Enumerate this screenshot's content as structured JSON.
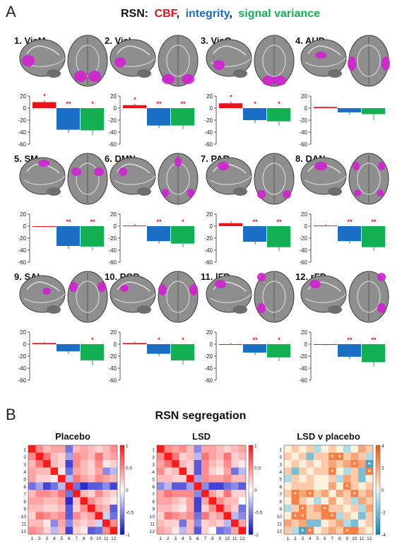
{
  "figure": {
    "panel_a_letter": "A",
    "panel_b_letter": "B",
    "rsn_label": "RSN:",
    "sep1": ",",
    "sep2": ",",
    "legend": [
      {
        "name": "CBF",
        "color": "#e8141c"
      },
      {
        "name": "integrity",
        "color": "#1a6fc4"
      },
      {
        "name": "signal variance",
        "color": "#12b052"
      }
    ],
    "segregation_title": "RSN segregation"
  },
  "colors": {
    "cbf": "#e8141c",
    "integrity": "#1a6fc4",
    "variance": "#12b052",
    "star": "#e8141c",
    "brain_gray": "#8c8c8c",
    "blob": "#d020d0"
  },
  "chart_data": [
    {
      "type": "bar",
      "panel": "A",
      "series_names": [
        "CBF",
        "integrity",
        "signal variance"
      ],
      "ylim": [
        -60,
        20
      ],
      "yticks": [
        "20",
        "0",
        "-20",
        "-40",
        "-60"
      ],
      "networks": [
        {
          "name": "1. VisM",
          "values": [
            10,
            -36,
            -37
          ],
          "errors": [
            3,
            5,
            8
          ],
          "stars": [
            "*",
            "**",
            "*"
          ]
        },
        {
          "name": "2. VisL",
          "values": [
            5,
            -29,
            -29
          ],
          "errors": [
            2,
            4,
            6
          ],
          "stars": [
            "*",
            "**",
            "**"
          ]
        },
        {
          "name": "3. VisO",
          "values": [
            8,
            -20,
            -22
          ],
          "errors": [
            3,
            5,
            7
          ],
          "stars": [
            "*",
            "*",
            "*"
          ]
        },
        {
          "name": "4. AUD",
          "values": [
            2,
            -7,
            -10
          ],
          "errors": [
            1,
            4,
            10
          ],
          "stars": [
            "",
            "",
            ""
          ]
        },
        {
          "name": "5. SM",
          "values": [
            -1,
            -33,
            -34
          ],
          "errors": [
            1,
            5,
            6
          ],
          "stars": [
            "",
            "**",
            "**"
          ]
        },
        {
          "name": "6. DMN",
          "values": [
            1,
            -25,
            -29
          ],
          "errors": [
            3,
            4,
            6
          ],
          "stars": [
            "",
            "**",
            "*"
          ]
        },
        {
          "name": "7. PAR",
          "values": [
            5,
            -26,
            -35
          ],
          "errors": [
            3,
            4,
            7
          ],
          "stars": [
            "",
            "**",
            "**"
          ]
        },
        {
          "name": "8. DAN",
          "values": [
            1,
            -25,
            -35
          ],
          "errors": [
            2,
            4,
            6
          ],
          "stars": [
            "",
            "**",
            "**"
          ]
        },
        {
          "name": "9. SAL",
          "values": [
            2,
            -12,
            -27
          ],
          "errors": [
            2,
            4,
            8
          ],
          "stars": [
            "",
            "",
            "*"
          ]
        },
        {
          "name": "10. POP",
          "values": [
            2,
            -16,
            -27
          ],
          "errors": [
            2,
            4,
            7
          ],
          "stars": [
            "",
            "*",
            "*"
          ]
        },
        {
          "name": "11. lFP",
          "values": [
            0,
            -14,
            -22
          ],
          "errors": [
            2,
            4,
            6
          ],
          "stars": [
            "",
            "**",
            "*"
          ]
        },
        {
          "name": "12. rFP",
          "values": [
            -1,
            -21,
            -30
          ],
          "errors": [
            1,
            4,
            7
          ],
          "stars": [
            "",
            "**",
            "**"
          ]
        }
      ]
    },
    {
      "type": "heatmap",
      "panel": "B",
      "title": "Placebo",
      "labels": [
        "1",
        "2",
        "3",
        "4",
        "5",
        "6",
        "7",
        "8",
        "9",
        "10",
        "11",
        "12"
      ],
      "scale": [
        -1,
        1
      ],
      "scale_ticks": [
        "1",
        "0.5",
        "0",
        "-0.5",
        "-1"
      ],
      "values": [
        [
          1.0,
          0.5,
          0.3,
          0.4,
          0.4,
          -0.6,
          0.3,
          0.4,
          0.3,
          0.2,
          0.3,
          0.5
        ],
        [
          0.5,
          1.0,
          0.6,
          0.3,
          0.2,
          -0.4,
          0.5,
          0.4,
          0.3,
          0.6,
          0.3,
          0.4
        ],
        [
          0.3,
          0.6,
          1.0,
          0.3,
          0.2,
          -0.8,
          0.5,
          0.3,
          0.2,
          0.5,
          0.1,
          0.2
        ],
        [
          0.4,
          0.3,
          0.3,
          1.0,
          0.1,
          -0.6,
          0.4,
          0.3,
          0.2,
          0.4,
          -0.5,
          -0.3
        ],
        [
          0.4,
          0.2,
          0.2,
          0.1,
          1.0,
          -0.3,
          0.6,
          0.4,
          0.3,
          0.5,
          0.4,
          0.3
        ],
        [
          -0.6,
          -0.4,
          -0.8,
          -0.6,
          -0.3,
          1.0,
          -0.6,
          -0.9,
          -0.7,
          -0.7,
          -0.5,
          -0.8
        ],
        [
          0.3,
          0.5,
          0.5,
          0.4,
          0.6,
          -0.6,
          1.0,
          0.3,
          0.2,
          0.5,
          0.3,
          0.2
        ],
        [
          0.4,
          0.4,
          0.3,
          0.3,
          0.4,
          -0.9,
          0.3,
          1.0,
          0.5,
          0.3,
          0.2,
          0.1
        ],
        [
          0.3,
          0.3,
          0.2,
          0.2,
          0.3,
          -0.7,
          0.2,
          0.5,
          1.0,
          0.4,
          0.3,
          -0.7
        ],
        [
          0.2,
          0.6,
          0.5,
          0.4,
          0.5,
          -0.7,
          0.5,
          0.3,
          0.4,
          1.0,
          -0.2,
          -0.6
        ],
        [
          0.3,
          0.3,
          0.1,
          -0.5,
          0.4,
          -0.5,
          0.3,
          0.2,
          0.3,
          -0.2,
          1.0,
          0.5
        ],
        [
          0.5,
          0.4,
          0.2,
          -0.3,
          0.3,
          -0.8,
          0.2,
          0.1,
          -0.7,
          -0.6,
          0.5,
          1.0
        ]
      ]
    },
    {
      "type": "heatmap",
      "panel": "B",
      "title": "LSD",
      "labels": [
        "1",
        "2",
        "3",
        "4",
        "5",
        "6",
        "7",
        "8",
        "9",
        "10",
        "11",
        "12"
      ],
      "scale": [
        -1,
        1
      ],
      "scale_ticks": [
        "1",
        "0.5",
        "0",
        "-0.5",
        "-1"
      ],
      "values": [
        [
          1.0,
          0.5,
          0.4,
          0.5,
          0.3,
          -0.5,
          0.4,
          0.4,
          0.3,
          0.2,
          0.3,
          0.4
        ],
        [
          0.5,
          1.0,
          0.6,
          0.2,
          0.3,
          -0.3,
          0.6,
          0.4,
          0.3,
          0.6,
          0.2,
          0.3
        ],
        [
          0.4,
          0.6,
          1.0,
          0.3,
          0.2,
          -0.7,
          0.5,
          0.3,
          0.2,
          0.5,
          0.2,
          0.1
        ],
        [
          0.5,
          0.2,
          0.3,
          1.0,
          0.2,
          -0.7,
          0.5,
          0.2,
          0.1,
          0.4,
          -0.6,
          -0.3
        ],
        [
          0.3,
          0.3,
          0.2,
          0.2,
          1.0,
          -0.4,
          0.5,
          0.4,
          0.4,
          0.5,
          0.3,
          0.3
        ],
        [
          -0.5,
          -0.3,
          -0.7,
          -0.7,
          -0.4,
          1.0,
          -0.5,
          -0.8,
          -0.8,
          -0.6,
          -0.5,
          -0.7
        ],
        [
          0.4,
          0.6,
          0.5,
          0.5,
          0.5,
          -0.5,
          1.0,
          0.4,
          0.2,
          0.6,
          0.2,
          0.2
        ],
        [
          0.4,
          0.4,
          0.3,
          0.2,
          0.4,
          -0.8,
          0.4,
          1.0,
          0.5,
          0.3,
          0.3,
          0.0
        ],
        [
          0.3,
          0.3,
          0.2,
          0.1,
          0.4,
          -0.8,
          0.2,
          0.5,
          1.0,
          0.4,
          0.2,
          -0.6
        ],
        [
          0.2,
          0.6,
          0.5,
          0.4,
          0.5,
          -0.6,
          0.6,
          0.3,
          0.4,
          1.0,
          -0.3,
          -0.5
        ],
        [
          0.3,
          0.2,
          0.2,
          -0.6,
          0.3,
          -0.5,
          0.2,
          0.3,
          0.2,
          -0.3,
          1.0,
          0.4
        ],
        [
          0.4,
          0.3,
          0.1,
          -0.3,
          0.3,
          -0.7,
          0.2,
          0.0,
          -0.6,
          -0.5,
          0.4,
          1.0
        ]
      ]
    },
    {
      "type": "heatmap",
      "panel": "B",
      "title": "LSD v placebo",
      "labels": [
        "1",
        "2",
        "3",
        "4",
        "5",
        "6",
        "7",
        "8",
        "9",
        "10",
        "11",
        "12"
      ],
      "scale": [
        -4,
        4
      ],
      "scale_ticks": [
        "4",
        "2",
        "0",
        "-2",
        "-4"
      ],
      "values": [
        [
          0,
          1,
          0,
          1,
          -1,
          0,
          1,
          0,
          -1,
          0,
          2,
          1
        ],
        [
          1,
          0,
          1,
          -2,
          1,
          1,
          3,
          3,
          1,
          2,
          1,
          -1
        ],
        [
          0,
          1,
          0,
          1,
          0,
          1,
          2,
          1,
          2,
          3,
          2,
          -3
        ],
        [
          1,
          -2,
          1,
          0,
          1,
          1,
          3,
          0,
          -1,
          1,
          -2,
          3
        ],
        [
          -1,
          1,
          0,
          1,
          0,
          0,
          1,
          -1,
          2,
          1,
          -2,
          0
        ],
        [
          0,
          1,
          1,
          1,
          0,
          0,
          2,
          0,
          3,
          1,
          0,
          1
        ],
        [
          1,
          3,
          2,
          3,
          1,
          2,
          0,
          2,
          1,
          3,
          1,
          2
        ],
        [
          0,
          3,
          1,
          0,
          -1,
          0,
          2,
          0,
          1,
          -1,
          2,
          1
        ],
        [
          -1,
          1,
          3,
          1,
          2,
          3,
          1,
          1,
          0,
          1,
          -1,
          2
        ],
        [
          0,
          3,
          3,
          1,
          1,
          3,
          3,
          -1,
          1,
          0,
          -2,
          1
        ],
        [
          2,
          1,
          2,
          -2,
          -2,
          0,
          1,
          2,
          -1,
          -2,
          0,
          1
        ],
        [
          1,
          -1,
          -3,
          3,
          0,
          1,
          2,
          1,
          3,
          3,
          1,
          0
        ]
      ],
      "significant": [
        [
          1,
          6
        ],
        [
          1,
          7
        ],
        [
          2,
          9
        ],
        [
          2,
          11
        ],
        [
          3,
          11
        ],
        [
          6,
          1
        ],
        [
          6,
          3
        ],
        [
          6,
          9
        ],
        [
          8,
          2
        ],
        [
          8,
          5
        ],
        [
          9,
          1
        ],
        [
          9,
          2
        ],
        [
          9,
          6
        ],
        [
          5,
          8
        ],
        [
          11,
          2
        ],
        [
          11,
          8
        ],
        [
          11,
          3
        ],
        [
          3,
          6
        ]
      ]
    }
  ]
}
